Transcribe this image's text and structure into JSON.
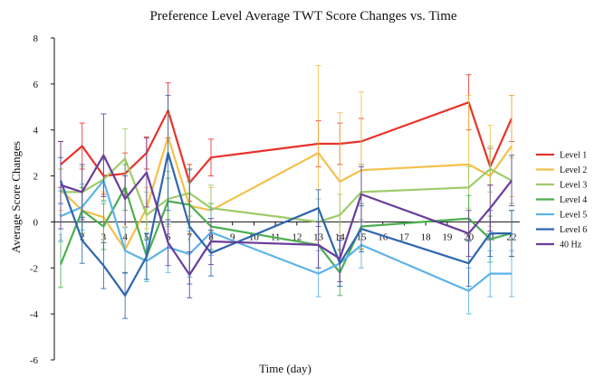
{
  "chart_data": {
    "type": "line",
    "title": "Preference Level Average TWT Score Changes vs. Time",
    "xlabel": "Time (day)",
    "ylabel": "Average Score Changes",
    "x": [
      1,
      2,
      3,
      4,
      5,
      6,
      7,
      8,
      9,
      10,
      11,
      12,
      13,
      14,
      15,
      16,
      17,
      18,
      19,
      20,
      21,
      22
    ],
    "ylim": [
      -6,
      8
    ],
    "yticks": [
      -6,
      -4,
      -2,
      0,
      2,
      4,
      6,
      8
    ],
    "grid": false,
    "legend_position": "right",
    "series": [
      {
        "name": "Level 1",
        "color": "#e8332b",
        "points": [
          [
            1,
            2.5
          ],
          [
            2,
            3.3
          ],
          [
            3,
            2.0
          ],
          [
            4,
            2.1
          ],
          [
            5,
            3.0
          ],
          [
            6,
            4.85
          ],
          [
            7,
            1.7
          ],
          [
            8,
            2.8
          ],
          [
            13,
            3.4
          ],
          [
            14,
            3.4
          ],
          [
            15,
            3.5
          ],
          [
            20,
            5.2
          ],
          [
            21,
            2.4
          ],
          [
            22,
            4.5
          ]
        ],
        "errors": [
          1.0,
          1.0,
          0.8,
          0.9,
          0.7,
          1.2,
          0.8,
          0.8,
          1.0,
          0.9,
          1.0,
          1.2,
          0.8,
          1.0
        ]
      },
      {
        "name": "Level 2",
        "color": "#f4c04a",
        "points": [
          [
            1,
            1.4
          ],
          [
            2,
            0.5
          ],
          [
            3,
            0.2
          ],
          [
            4,
            -1.2
          ],
          [
            5,
            0.6
          ],
          [
            6,
            3.7
          ],
          [
            7,
            0.7
          ],
          [
            8,
            0.5
          ],
          [
            13,
            3.0
          ],
          [
            14,
            1.75
          ],
          [
            15,
            2.25
          ],
          [
            20,
            2.5
          ],
          [
            21,
            2.0
          ],
          [
            22,
            3.3
          ]
        ],
        "errors": [
          0.9,
          1.0,
          1.1,
          1.0,
          0.9,
          1.0,
          1.2,
          1.0,
          3.8,
          3.0,
          3.4,
          3.0,
          2.2,
          2.2
        ]
      },
      {
        "name": "Level 3",
        "color": "#9ecb6a",
        "points": [
          [
            1,
            1.3
          ],
          [
            2,
            1.3
          ],
          [
            3,
            1.85
          ],
          [
            4,
            2.75
          ],
          [
            5,
            0.3
          ],
          [
            6,
            1.0
          ],
          [
            7,
            1.25
          ],
          [
            8,
            0.6
          ],
          [
            13,
            0.0
          ],
          [
            14,
            0.3
          ],
          [
            15,
            1.3
          ],
          [
            20,
            1.5
          ],
          [
            21,
            2.3
          ],
          [
            22,
            1.8
          ]
        ],
        "errors": [
          1.0,
          1.1,
          0.9,
          1.3,
          1.0,
          1.2,
          1.0,
          1.0,
          1.0,
          0.9,
          1.2,
          0.9,
          1.0,
          1.0
        ]
      },
      {
        "name": "Level 4",
        "color": "#4caf50",
        "points": [
          [
            1,
            -1.85
          ],
          [
            2,
            0.5
          ],
          [
            3,
            -0.2
          ],
          [
            4,
            1.5
          ],
          [
            5,
            -1.5
          ],
          [
            6,
            0.9
          ],
          [
            7,
            0.75
          ],
          [
            8,
            -0.2
          ],
          [
            13,
            -1.0
          ],
          [
            14,
            -2.2
          ],
          [
            15,
            -0.2
          ],
          [
            20,
            0.15
          ],
          [
            21,
            -0.75
          ],
          [
            22,
            -0.5
          ]
        ],
        "errors": [
          1.0,
          1.0,
          1.0,
          1.0,
          1.0,
          1.0,
          1.0,
          1.0,
          1.0,
          1.0,
          1.0,
          1.0,
          1.0,
          1.0
        ]
      },
      {
        "name": "Level 5",
        "color": "#5bb3e8",
        "points": [
          [
            1,
            0.25
          ],
          [
            2,
            0.65
          ],
          [
            3,
            1.8
          ],
          [
            4,
            -1.25
          ],
          [
            5,
            -1.7
          ],
          [
            6,
            -1.1
          ],
          [
            7,
            -1.4
          ],
          [
            8,
            -0.45
          ],
          [
            13,
            -2.25
          ],
          [
            14,
            -1.8
          ],
          [
            15,
            -1.0
          ],
          [
            20,
            -3.0
          ],
          [
            21,
            -2.25
          ],
          [
            22,
            -2.25
          ]
        ],
        "errors": [
          1.1,
          1.0,
          0.9,
          1.0,
          0.9,
          1.1,
          1.0,
          1.0,
          1.0,
          1.0,
          1.0,
          1.0,
          1.0,
          1.0
        ]
      },
      {
        "name": "Level 6",
        "color": "#2f66ad",
        "points": [
          [
            1,
            1.8
          ],
          [
            2,
            -0.8
          ],
          [
            3,
            -1.9
          ],
          [
            4,
            -3.2
          ],
          [
            5,
            -1.5
          ],
          [
            6,
            3.0
          ],
          [
            7,
            -0.2
          ],
          [
            8,
            -1.35
          ],
          [
            13,
            0.6
          ],
          [
            14,
            -1.8
          ],
          [
            15,
            -0.3
          ],
          [
            20,
            -1.8
          ],
          [
            21,
            -0.5
          ],
          [
            22,
            -0.5
          ]
        ],
        "errors": [
          1.0,
          1.0,
          1.0,
          1.0,
          1.0,
          2.5,
          2.5,
          1.0,
          0.8,
          1.0,
          1.0,
          1.0,
          1.0,
          1.0
        ]
      },
      {
        "name": "40 Hz",
        "color": "#6a3d9a",
        "points": [
          [
            1,
            1.6
          ],
          [
            2,
            1.3
          ],
          [
            3,
            2.9
          ],
          [
            4,
            1.0
          ],
          [
            5,
            2.15
          ],
          [
            6,
            -0.9
          ],
          [
            7,
            -2.3
          ],
          [
            8,
            -0.85
          ],
          [
            13,
            -1.0
          ],
          [
            14,
            -1.6
          ],
          [
            15,
            1.2
          ],
          [
            20,
            -0.5
          ],
          [
            21,
            0.6
          ],
          [
            22,
            1.8
          ]
        ],
        "errors": [
          1.9,
          1.2,
          1.8,
          1.0,
          1.5,
          1.0,
          1.0,
          1.0,
          1.0,
          1.0,
          1.2,
          1.0,
          1.0,
          1.1
        ]
      }
    ]
  }
}
